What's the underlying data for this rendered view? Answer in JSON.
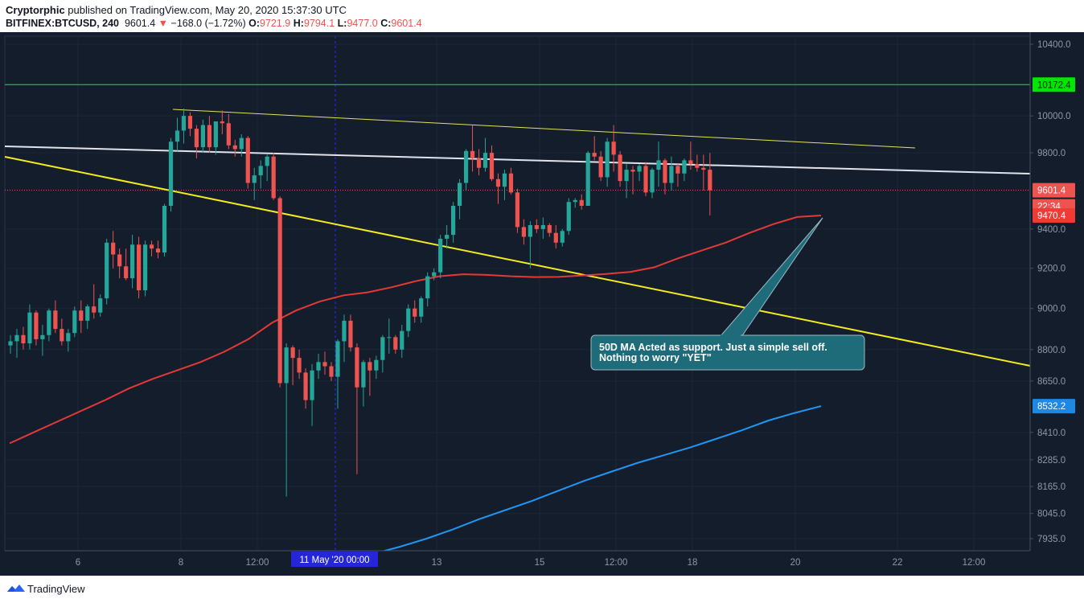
{
  "header": {
    "author": "Cryptorphic",
    "published_text": "published on TradingView.com, May 20, 2020 15:37:30 UTC",
    "symbol": "BITFINEX:BTCUSD, 240",
    "last": "9601.4",
    "change": "−168.0 (−1.72%)",
    "o_label": "O:",
    "o_val": "9721.9",
    "h_label": "H:",
    "h_val": "9794.1",
    "l_label": "L:",
    "l_val": "9477.0",
    "c_label": "C:",
    "c_val": "9601.4"
  },
  "annotation": {
    "line1": "50D MA Acted as support. Just a simple sell off.",
    "line2": "Nothing to worry \"YET\""
  },
  "footer": {
    "brand": "TradingView"
  },
  "colors": {
    "background": "#131d2b",
    "bull": "#26a69a",
    "bear": "#ef5350",
    "ma50": "#e53935",
    "ma200": "#2196f3",
    "trend_yellow": "#f5eb1e",
    "horizontal_green": "#00e676",
    "white_line": "#e0e3eb",
    "annotation_bg": "#1e6b7a"
  },
  "chart_data": {
    "type": "candlestick",
    "ylim": [
      7860,
      10460
    ],
    "y_scale": "log",
    "y_ticks": [
      10400,
      10000,
      9800,
      9400,
      9200,
      9000,
      8800,
      8650,
      8410,
      8285,
      8165,
      8045,
      7935
    ],
    "y_tick_labels": [
      "10400.0",
      "10000.0",
      "9800.0",
      "9400.0",
      "9200.0",
      "9000.0",
      "8800.0",
      "8650.0",
      "8410.0",
      "8285.0",
      "8165.0",
      "8045.0",
      "7935.0"
    ],
    "x_ticks": [
      "6",
      "8",
      "12:00",
      "13",
      "15",
      "12:00",
      "18",
      "20",
      "22",
      "12:00"
    ],
    "x_highlight_label": "11 May '20   00:00",
    "price_labels": {
      "horizontal": "10172.4",
      "last": "9601.4",
      "countdown": "22:34",
      "ma50": "9470.4",
      "ma200": "8532.2"
    },
    "horizontal_level": 10172.4,
    "last_price": 9601.4,
    "candles": [
      [
        8820,
        8870,
        8780,
        8840
      ],
      [
        8840,
        8900,
        8760,
        8870
      ],
      [
        8870,
        8910,
        8800,
        8830
      ],
      [
        8830,
        9020,
        8800,
        8980
      ],
      [
        8980,
        8990,
        8820,
        8850
      ],
      [
        8850,
        8920,
        8770,
        8870
      ],
      [
        8870,
        9000,
        8840,
        8990
      ],
      [
        8990,
        9040,
        8880,
        8900
      ],
      [
        8900,
        8950,
        8820,
        8840
      ],
      [
        8840,
        8900,
        8790,
        8880
      ],
      [
        8880,
        9010,
        8860,
        8990
      ],
      [
        8990,
        9040,
        8880,
        8940
      ],
      [
        8940,
        9020,
        8900,
        9010
      ],
      [
        9010,
        9120,
        8950,
        8980
      ],
      [
        8980,
        9070,
        8960,
        9050
      ],
      [
        9050,
        9350,
        9020,
        9330
      ],
      [
        9330,
        9390,
        9200,
        9270
      ],
      [
        9270,
        9300,
        9150,
        9210
      ],
      [
        9210,
        9300,
        9140,
        9150
      ],
      [
        9150,
        9370,
        9100,
        9320
      ],
      [
        9320,
        9360,
        9050,
        9090
      ],
      [
        9090,
        9340,
        9060,
        9320
      ],
      [
        9320,
        9340,
        9260,
        9300
      ],
      [
        9300,
        9340,
        9250,
        9280
      ],
      [
        9280,
        9530,
        9260,
        9520
      ],
      [
        9520,
        9880,
        9490,
        9860
      ],
      [
        9860,
        9990,
        9810,
        9920
      ],
      [
        9920,
        10040,
        9850,
        10000
      ],
      [
        10000,
        10020,
        9890,
        9930
      ],
      [
        9930,
        9950,
        9770,
        9830
      ],
      [
        9830,
        9980,
        9800,
        9950
      ],
      [
        9950,
        10000,
        9800,
        9830
      ],
      [
        9830,
        9960,
        9790,
        9970
      ],
      [
        9970,
        10030,
        9900,
        9960
      ],
      [
        9960,
        10010,
        9820,
        9840
      ],
      [
        9840,
        9870,
        9780,
        9820
      ],
      [
        9820,
        9900,
        9780,
        9880
      ],
      [
        9880,
        9890,
        9610,
        9640
      ],
      [
        9640,
        9720,
        9550,
        9680
      ],
      [
        9680,
        9760,
        9610,
        9730
      ],
      [
        9730,
        9790,
        9650,
        9780
      ],
      [
        9780,
        9800,
        9550,
        9560
      ],
      [
        9560,
        9570,
        8620,
        8640
      ],
      [
        8640,
        8830,
        8120,
        8810
      ],
      [
        8810,
        8820,
        8630,
        8760
      ],
      [
        8760,
        8800,
        8660,
        8690
      ],
      [
        8690,
        8710,
        8520,
        8560
      ],
      [
        8560,
        8730,
        8440,
        8700
      ],
      [
        8700,
        8780,
        8660,
        8740
      ],
      [
        8740,
        8790,
        8680,
        8720
      ],
      [
        8720,
        8740,
        8650,
        8670
      ],
      [
        8670,
        8850,
        8520,
        8840
      ],
      [
        8840,
        8970,
        8740,
        8940
      ],
      [
        8940,
        8970,
        8790,
        8810
      ],
      [
        8810,
        8830,
        8220,
        8620
      ],
      [
        8620,
        8750,
        8530,
        8740
      ],
      [
        8740,
        8760,
        8580,
        8700
      ],
      [
        8700,
        8770,
        8660,
        8750
      ],
      [
        8750,
        8870,
        8690,
        8860
      ],
      [
        8860,
        8950,
        8780,
        8860
      ],
      [
        8860,
        8870,
        8780,
        8800
      ],
      [
        8800,
        8920,
        8760,
        8890
      ],
      [
        8890,
        9020,
        8860,
        9000
      ],
      [
        9000,
        9040,
        8930,
        8960
      ],
      [
        8960,
        9060,
        8930,
        9050
      ],
      [
        9050,
        9180,
        9010,
        9160
      ],
      [
        9160,
        9200,
        9140,
        9180
      ],
      [
        9180,
        9370,
        9150,
        9350
      ],
      [
        9350,
        9420,
        9300,
        9370
      ],
      [
        9370,
        9540,
        9330,
        9520
      ],
      [
        9520,
        9660,
        9450,
        9640
      ],
      [
        9640,
        9820,
        9600,
        9810
      ],
      [
        9810,
        9950,
        9700,
        9770
      ],
      [
        9770,
        9820,
        9680,
        9720
      ],
      [
        9720,
        9880,
        9700,
        9800
      ],
      [
        9800,
        9840,
        9650,
        9660
      ],
      [
        9660,
        9690,
        9530,
        9620
      ],
      [
        9620,
        9710,
        9550,
        9690
      ],
      [
        9690,
        9720,
        9580,
        9590
      ],
      [
        9590,
        9610,
        9380,
        9410
      ],
      [
        9410,
        9450,
        9320,
        9360
      ],
      [
        9360,
        9440,
        9200,
        9420
      ],
      [
        9420,
        9450,
        9380,
        9400
      ],
      [
        9400,
        9460,
        9350,
        9420
      ],
      [
        9420,
        9430,
        9360,
        9380
      ],
      [
        9380,
        9420,
        9300,
        9330
      ],
      [
        9330,
        9400,
        9310,
        9390
      ],
      [
        9390,
        9560,
        9370,
        9540
      ],
      [
        9540,
        9560,
        9510,
        9550
      ],
      [
        9550,
        9580,
        9500,
        9520
      ],
      [
        9520,
        9810,
        9520,
        9800
      ],
      [
        9800,
        9890,
        9760,
        9780
      ],
      [
        9780,
        9810,
        9650,
        9670
      ],
      [
        9670,
        9880,
        9620,
        9860
      ],
      [
        9860,
        9950,
        9700,
        9790
      ],
      [
        9790,
        9810,
        9620,
        9650
      ],
      [
        9650,
        9740,
        9560,
        9710
      ],
      [
        9710,
        9730,
        9580,
        9700
      ],
      [
        9700,
        9740,
        9650,
        9730
      ],
      [
        9730,
        9750,
        9570,
        9590
      ],
      [
        9590,
        9720,
        9560,
        9710
      ],
      [
        9710,
        9860,
        9620,
        9760
      ],
      [
        9760,
        9770,
        9580,
        9640
      ],
      [
        9640,
        9780,
        9600,
        9730
      ],
      [
        9730,
        9740,
        9620,
        9690
      ],
      [
        9690,
        9770,
        9650,
        9760
      ],
      [
        9760,
        9860,
        9710,
        9740
      ],
      [
        9740,
        9790,
        9700,
        9720
      ],
      [
        9720,
        9790,
        9600,
        9710
      ],
      [
        9710,
        9800,
        9470,
        9601
      ]
    ],
    "ma50": [
      8360,
      8410,
      8460,
      8510,
      8560,
      8615,
      8660,
      8700,
      8740,
      8790,
      8850,
      8930,
      8990,
      9035,
      9065,
      9080,
      9105,
      9135,
      9160,
      9170,
      9167,
      9160,
      9156,
      9157,
      9164,
      9172,
      9182,
      9205,
      9250,
      9290,
      9330,
      9380,
      9425,
      9462,
      9470
    ],
    "ma200": [
      7850,
      7870,
      7900,
      7935,
      7975,
      8020,
      8060,
      8100,
      8145,
      8190,
      8230,
      8270,
      8305,
      8340,
      8380,
      8420,
      8465,
      8500,
      8532
    ]
  }
}
